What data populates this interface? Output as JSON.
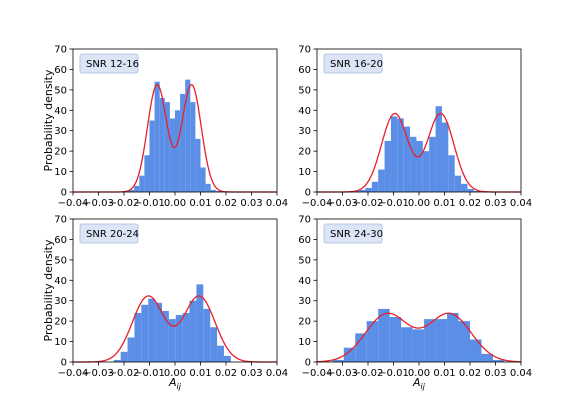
{
  "figure": {
    "xlabel": "A",
    "xlabel_sub": "ij",
    "ylabel": "Probability density"
  },
  "chart_data": [
    {
      "type": "bar",
      "label": "SNR 12-16",
      "xlim": [
        -0.04,
        0.04
      ],
      "ylim": [
        0,
        70
      ],
      "xticks": [
        "−0.04",
        "−0.03",
        "−0.02",
        "−0.01",
        "0.00",
        "0.01",
        "0.02",
        "0.03",
        "0.04"
      ],
      "yticks": [
        "0",
        "10",
        "20",
        "30",
        "40",
        "50",
        "60",
        "70"
      ],
      "bin_edges": [
        -0.02,
        -0.018,
        -0.016,
        -0.014,
        -0.012,
        -0.01,
        -0.008,
        -0.006,
        -0.004,
        -0.002,
        0.0,
        0.002,
        0.004,
        0.006,
        0.008,
        0.01,
        0.012,
        0.014,
        0.016,
        0.018
      ],
      "values": [
        0.5,
        1,
        3,
        8,
        18,
        35,
        54,
        46,
        44,
        36,
        40,
        48,
        55,
        44,
        26,
        12,
        4,
        1,
        0.5
      ],
      "fit": {
        "means": [
          -0.007,
          0.0065
        ],
        "sigma": 0.0038,
        "weights": [
          0.5,
          0.5
        ]
      }
    },
    {
      "type": "bar",
      "label": "SNR 16-20",
      "xlim": [
        -0.04,
        0.04
      ],
      "ylim": [
        0,
        70
      ],
      "xticks": [
        "−0.04",
        "−0.03",
        "−0.02",
        "−0.01",
        "0.00",
        "0.01",
        "0.02",
        "0.03",
        "0.04"
      ],
      "yticks": [
        "0",
        "10",
        "20",
        "30",
        "40",
        "50",
        "60",
        "70"
      ],
      "bin_edges": [
        -0.026,
        -0.0235,
        -0.021,
        -0.0185,
        -0.016,
        -0.0135,
        -0.011,
        -0.0085,
        -0.006,
        -0.0035,
        -0.001,
        0.0015,
        0.004,
        0.0065,
        0.009,
        0.0115,
        0.014,
        0.0165,
        0.019,
        0.0215,
        0.024
      ],
      "values": [
        0.5,
        1,
        2,
        5,
        11,
        25,
        37,
        36,
        32,
        27,
        25,
        20,
        27,
        42,
        34,
        18,
        8,
        4,
        1.5,
        0.5
      ],
      "fit": {
        "means": [
          -0.0095,
          0.0085
        ],
        "sigma": 0.0052,
        "weights": [
          0.5,
          0.5
        ]
      }
    },
    {
      "type": "bar",
      "label": "SNR 20-24",
      "xlim": [
        -0.04,
        0.04
      ],
      "ylim": [
        0,
        70
      ],
      "xticks": [
        "−0.04",
        "−0.03",
        "−0.02",
        "−0.01",
        "0.00",
        "0.01",
        "0.02",
        "0.03",
        "0.04"
      ],
      "yticks": [
        "0",
        "10",
        "20",
        "30",
        "40",
        "50",
        "60",
        "70"
      ],
      "bin_edges": [
        -0.024,
        -0.0213,
        -0.0186,
        -0.0159,
        -0.0132,
        -0.0105,
        -0.0078,
        -0.0051,
        -0.0024,
        0.0003,
        0.003,
        0.0057,
        0.0084,
        0.0111,
        0.0138,
        0.0165,
        0.0192,
        0.0219
      ],
      "values": [
        1,
        5,
        12,
        24,
        28,
        31,
        29,
        25,
        21,
        23,
        24,
        30,
        38,
        26,
        17,
        8,
        3
      ],
      "fit": {
        "means": [
          -0.0105,
          0.0095
        ],
        "sigma": 0.0062,
        "weights": [
          0.5,
          0.5
        ]
      }
    },
    {
      "type": "bar",
      "label": "SNR 24-30",
      "xlim": [
        -0.04,
        0.04
      ],
      "ylim": [
        0,
        70
      ],
      "xticks": [
        "−0.04",
        "−0.03",
        "−0.02",
        "−0.01",
        "0.00",
        "0.01",
        "0.02",
        "0.03",
        "0.04"
      ],
      "yticks": [
        "0",
        "10",
        "20",
        "30",
        "40",
        "50",
        "60",
        "70"
      ],
      "bin_edges": [
        -0.034,
        -0.0295,
        -0.025,
        -0.0205,
        -0.016,
        -0.0115,
        -0.007,
        -0.0025,
        0.002,
        0.0065,
        0.011,
        0.0155,
        0.02,
        0.0245,
        0.029,
        0.0335
      ],
      "values": [
        1,
        7,
        14,
        20,
        26,
        22,
        17,
        16,
        21,
        21,
        24,
        20,
        11,
        4,
        1
      ],
      "fit": {
        "means": [
          -0.0125,
          0.012
        ],
        "sigma": 0.0085,
        "weights": [
          0.5,
          0.5
        ]
      }
    }
  ]
}
